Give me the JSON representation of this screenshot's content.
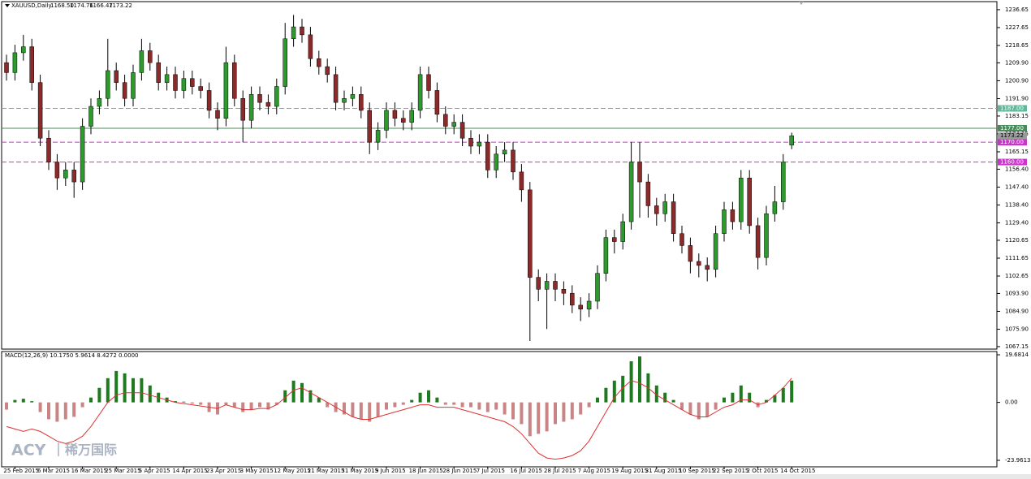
{
  "watermark": {
    "brand": "ACY",
    "local_name": "稀万国际"
  },
  "chart_data": [
    {
      "type": "candlestick",
      "title": "XAUUSD,Daily",
      "header_values": [
        "1168.50",
        "1174.76",
        "1166.47",
        "1173.22"
      ],
      "categories": [
        null,
        "25 Feb 2015",
        null,
        null,
        null,
        "6 Mar 2015",
        null,
        null,
        null,
        "16 Mar 2015",
        null,
        null,
        null,
        "25 Mar 2015",
        null,
        null,
        null,
        "5 Apr 2015",
        null,
        null,
        null,
        "14 Apr 2015",
        null,
        null,
        null,
        "23 Apr 2015",
        null,
        null,
        null,
        "3 May 2015",
        null,
        null,
        null,
        "12 May 2015",
        null,
        null,
        null,
        "21 May 2015",
        null,
        null,
        null,
        "31 May 2015",
        null,
        null,
        null,
        "9 Jun 2015",
        null,
        null,
        null,
        "18 Jun 2015",
        null,
        null,
        null,
        "28 Jun 2015",
        null,
        null,
        null,
        "7 Jul 2015",
        null,
        null,
        null,
        "16 Jul 2015",
        null,
        null,
        null,
        "28 Jul 2015",
        null,
        null,
        null,
        "7 Aug 2015",
        null,
        null,
        null,
        "19 Aug 2015",
        null,
        null,
        null,
        "31 Aug 2015",
        null,
        null,
        null,
        "10 Sep 2015",
        null,
        null,
        null,
        "22 Sep 2015",
        null,
        null,
        null,
        "2 Oct 2015",
        null,
        null,
        null,
        "14 Oct 2015"
      ],
      "open": [
        1210,
        1205,
        1215,
        1218,
        1200,
        1172,
        1160,
        1152,
        1156,
        1150,
        1178,
        1188,
        1192,
        1206,
        1200,
        1192,
        1205,
        1216,
        1210,
        1200,
        1204,
        1196,
        1202,
        1198,
        1196,
        1186,
        1182,
        1210,
        1192,
        1181,
        1194,
        1190,
        1188,
        1198,
        1222,
        1228,
        1224,
        1212,
        1208,
        1204,
        1190,
        1192,
        1194,
        1186,
        1170,
        1176,
        1186,
        1182,
        1180,
        1186,
        1204,
        1196,
        1184,
        1178,
        1180,
        1172,
        1168,
        1170,
        1156,
        1164,
        1166,
        1155,
        1146,
        1102,
        1096,
        1100,
        1096,
        1094,
        1088,
        1086,
        1090,
        1104,
        1122,
        1120,
        1130,
        1160,
        1150,
        1138,
        1134,
        1140,
        1124,
        1118,
        1110,
        1108,
        1106,
        1124,
        1136,
        1130,
        1152,
        1128,
        1112,
        1134,
        1140,
        1168.5
      ],
      "high": [
        1214,
        1219,
        1224,
        1222,
        1204,
        1176,
        1164,
        1160,
        1160,
        1182,
        1192,
        1196,
        1222,
        1210,
        1204,
        1209,
        1222,
        1220,
        1214,
        1208,
        1208,
        1206,
        1206,
        1202,
        1200,
        1190,
        1218,
        1214,
        1196,
        1198,
        1198,
        1194,
        1202,
        1230,
        1234,
        1232,
        1228,
        1216,
        1212,
        1208,
        1196,
        1198,
        1198,
        1190,
        1180,
        1190,
        1190,
        1186,
        1190,
        1208,
        1208,
        1200,
        1188,
        1184,
        1184,
        1176,
        1174,
        1174,
        1168,
        1170,
        1170,
        1159,
        1150,
        1106,
        1104,
        1104,
        1100,
        1098,
        1092,
        1094,
        1108,
        1126,
        1126,
        1134,
        1170,
        1170,
        1154,
        1142,
        1144,
        1144,
        1128,
        1122,
        1114,
        1112,
        1128,
        1140,
        1140,
        1156,
        1156,
        1132,
        1138,
        1148,
        1164,
        1174.76
      ],
      "low": [
        1201,
        1201,
        1211,
        1196,
        1168,
        1156,
        1146,
        1148,
        1142,
        1146,
        1174,
        1184,
        1188,
        1196,
        1188,
        1188,
        1201,
        1206,
        1196,
        1196,
        1192,
        1192,
        1194,
        1192,
        1182,
        1176,
        1178,
        1188,
        1170,
        1177,
        1186,
        1184,
        1184,
        1194,
        1218,
        1220,
        1208,
        1204,
        1200,
        1186,
        1186,
        1188,
        1182,
        1164,
        1166,
        1172,
        1178,
        1176,
        1176,
        1182,
        1192,
        1180,
        1174,
        1174,
        1168,
        1164,
        1164,
        1152,
        1152,
        1160,
        1151,
        1140,
        1070,
        1090,
        1076,
        1090,
        1088,
        1084,
        1080,
        1082,
        1086,
        1100,
        1114,
        1116,
        1126,
        1132,
        1132,
        1128,
        1130,
        1120,
        1114,
        1104,
        1102,
        1100,
        1102,
        1120,
        1126,
        1126,
        1124,
        1106,
        1108,
        1130,
        1136,
        1166.47
      ],
      "close": [
        1205,
        1215,
        1218,
        1200,
        1172,
        1160,
        1152,
        1156,
        1150,
        1178,
        1188,
        1192,
        1206,
        1200,
        1192,
        1205,
        1216,
        1210,
        1200,
        1204,
        1196,
        1202,
        1198,
        1196,
        1186,
        1182,
        1210,
        1192,
        1181,
        1194,
        1190,
        1188,
        1198,
        1222,
        1228,
        1224,
        1212,
        1208,
        1204,
        1190,
        1192,
        1194,
        1186,
        1170,
        1176,
        1186,
        1182,
        1180,
        1186,
        1204,
        1196,
        1184,
        1178,
        1180,
        1172,
        1168,
        1170,
        1156,
        1164,
        1166,
        1155,
        1146,
        1102,
        1096,
        1100,
        1096,
        1094,
        1088,
        1086,
        1090,
        1104,
        1122,
        1120,
        1130,
        1160,
        1150,
        1138,
        1134,
        1140,
        1124,
        1118,
        1110,
        1108,
        1106,
        1124,
        1136,
        1130,
        1152,
        1128,
        1112,
        1134,
        1140,
        1160,
        1173.22
      ],
      "up_color": "#2e9a2e",
      "down_color": "#8b2a2a",
      "wick_color": "#000000",
      "ylim": [
        1065.9,
        1240.7
      ],
      "yticks": [
        1236.65,
        1227.65,
        1218.65,
        {
          "value": 1209.9,
          "label": "1209.90"
        },
        {
          "value": 1200.9,
          "label": "1200.90"
        },
        {
          "value": 1191.9,
          "label": "1191.90"
        },
        1183.15,
        1174.15,
        1165.15,
        {
          "value": 1156.4,
          "label": "1156.40"
        },
        {
          "value": 1147.4,
          "label": "1147.40"
        },
        {
          "value": 1138.4,
          "label": "1138.40"
        },
        {
          "value": 1129.4,
          "label": "1129.40"
        },
        1120.65,
        1111.65,
        1102.65,
        {
          "value": 1093.9,
          "label": "1093.90"
        },
        {
          "value": 1084.9,
          "label": "1084.90"
        },
        {
          "value": 1075.9,
          "label": "1075.90"
        },
        1067.15
      ],
      "levels": [
        {
          "value": 1187,
          "label": "1187.00",
          "color": "#5fb89a",
          "dashed": true
        },
        {
          "value": 1177,
          "label": "1177.00",
          "color": "#4a8a5a",
          "dashed": false
        },
        {
          "value": 1170,
          "label": "1170.00",
          "color": "#cc33cc",
          "dashed": true
        },
        {
          "value": 1160,
          "label": "1160.00",
          "color": "#cc33cc",
          "dashed": true
        }
      ],
      "price_tag_color": "#9a9a9a"
    },
    {
      "type": "macd",
      "title": "MACD(12,26,9) 10.1750 5.9614 8.4272 0.0000",
      "values": [
        -3,
        1,
        1.5,
        0.5,
        -4,
        -7,
        -8,
        -7,
        -6,
        -2,
        2,
        6,
        10,
        13,
        12,
        10,
        10,
        7,
        4,
        2,
        0.5,
        0.3,
        -0.5,
        -1,
        -4,
        -5,
        -1,
        -2,
        -4,
        -3,
        -2,
        -3,
        -1,
        5,
        9,
        8,
        5,
        2,
        -2,
        -4,
        -5,
        -6,
        -7,
        -8,
        -6,
        -3,
        -2,
        -1,
        1,
        4,
        5,
        2,
        -1,
        -1,
        -2,
        -2,
        -3,
        -4,
        -3,
        -5,
        -7,
        -9,
        -14,
        -13,
        -12,
        -9,
        -8,
        -7,
        -5,
        -2,
        2,
        6,
        9,
        11,
        17,
        19,
        12,
        7,
        4,
        1,
        -3,
        -5,
        -7,
        -6,
        -3,
        2,
        4,
        7,
        4,
        -2,
        1,
        3,
        6,
        9
      ],
      "signal": [
        -10,
        -11,
        -12,
        -11,
        -12,
        -14,
        -16,
        -17,
        -16,
        -14,
        -10,
        -5,
        0,
        3,
        4,
        4,
        4,
        3,
        2,
        1,
        0,
        -0.5,
        -1,
        -1.5,
        -2,
        -2.5,
        -1,
        -2,
        -3,
        -3,
        -2.5,
        -2.5,
        -1,
        2,
        5,
        6,
        4,
        2,
        0,
        -2,
        -4,
        -6,
        -7,
        -7,
        -6,
        -5,
        -4,
        -3,
        -2,
        -1,
        -1,
        -2,
        -2,
        -2,
        -3,
        -4,
        -5,
        -6,
        -7,
        -8,
        -10,
        -13,
        -17,
        -21,
        -23,
        -23.5,
        -23,
        -22,
        -20,
        -16,
        -10,
        -4,
        2,
        6,
        9,
        8,
        6,
        3,
        1,
        -1,
        -3,
        -5,
        -6,
        -6,
        -4,
        -2,
        -1,
        1,
        1,
        -1,
        0,
        3,
        6,
        10
      ],
      "up_color": "#1f7a1f",
      "down_color": "#c98585",
      "signal_color": "#e03030",
      "ylim": [
        -26.65,
        21.02
      ],
      "yticks": [
        19.6814,
        {
          "value": 0,
          "label": "0.00"
        },
        -23.9613
      ]
    }
  ]
}
